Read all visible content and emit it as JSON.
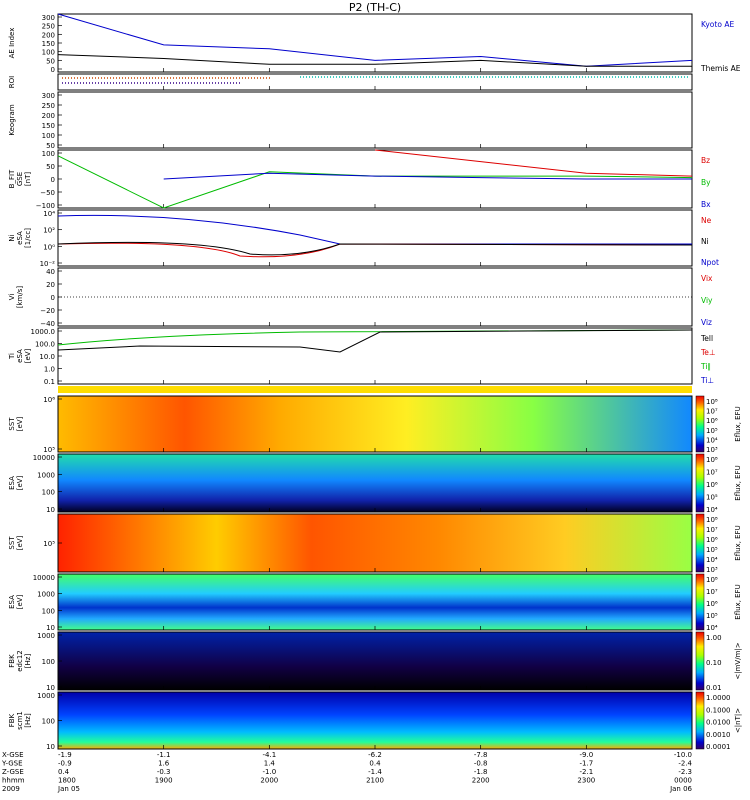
{
  "title": "P2 (TH-C)",
  "panels": [
    {
      "id": "ae",
      "ylabel": "AE Index",
      "ticks": [
        "300",
        "250",
        "200",
        "150",
        "100",
        "50",
        "0"
      ],
      "legend": [
        {
          "text": "Kyoto AE",
          "color": "#0000cc"
        },
        {
          "text": "Themis AE",
          "color": "#000000"
        }
      ]
    },
    {
      "id": "roi",
      "ylabel": "ROI",
      "ticks": [],
      "legend": []
    },
    {
      "id": "keogram",
      "ylabel": "Keogram",
      "ticks": [
        "300",
        "250",
        "200",
        "150",
        "100",
        "50"
      ],
      "legend": []
    },
    {
      "id": "bfit",
      "ylabel": [
        "B_FIT",
        "GSE",
        "[nT]"
      ],
      "ticks": [
        "100",
        "50",
        "0",
        "−50",
        "−100"
      ],
      "legend": [
        {
          "text": "Bz",
          "color": "#dd0000"
        },
        {
          "text": "By",
          "color": "#00bb00"
        },
        {
          "text": "Bx",
          "color": "#0000cc"
        }
      ]
    },
    {
      "id": "ni",
      "ylabel": [
        "Ni",
        "eSA",
        "[1/cc]"
      ],
      "ticks": [
        "10⁴",
        "10²",
        "10⁰",
        "10⁻²"
      ],
      "legend": [
        {
          "text": "Ne",
          "color": "#dd0000"
        },
        {
          "text": "Ni",
          "color": "#000000"
        },
        {
          "text": "Npot",
          "color": "#0000cc"
        }
      ]
    },
    {
      "id": "vi",
      "ylabel": [
        "Vi",
        "[km/s]"
      ],
      "ticks": [
        "40",
        "20",
        "0",
        "−20",
        "−40"
      ],
      "legend": [
        {
          "text": "Vix",
          "color": "#dd0000"
        },
        {
          "text": "Viy",
          "color": "#00bb00"
        },
        {
          "text": "Viz",
          "color": "#0000cc"
        }
      ]
    },
    {
      "id": "ti",
      "ylabel": [
        "Ti",
        "eSA",
        "[eV]"
      ],
      "ticks": [
        "1000.0",
        "100.0",
        "10.0",
        "1.0",
        "0.1"
      ],
      "legend": [
        {
          "text": "Tell",
          "color": "#000000"
        },
        {
          "text": "Te⊥",
          "color": "#dd0000"
        },
        {
          "text": "Ti∥",
          "color": "#00bb00"
        },
        {
          "text": "Ti⊥",
          "color": "#0000cc"
        }
      ]
    },
    {
      "id": "sst_e",
      "ylabel": [
        "SST",
        "[eV]"
      ],
      "ticks": [
        "10⁶",
        "10⁵"
      ],
      "legend": []
    },
    {
      "id": "esa_e",
      "ylabel": [
        "ESA",
        "[eV]"
      ],
      "ticks": [
        "10000",
        "1000",
        "100",
        "10"
      ],
      "legend": []
    },
    {
      "id": "sst_i",
      "ylabel": [
        "SST",
        "[eV]"
      ],
      "ticks": [
        "10⁵"
      ],
      "legend": []
    },
    {
      "id": "esa_i",
      "ylabel": [
        "ESA",
        "[eV]"
      ],
      "ticks": [
        "10000",
        "1000",
        "100",
        "10"
      ],
      "legend": []
    },
    {
      "id": "fbk1",
      "ylabel": [
        "FBK",
        "edc12",
        "[Hz]"
      ],
      "ticks": [
        "1000",
        "100",
        "10"
      ],
      "legend": []
    },
    {
      "id": "fbk2",
      "ylabel": [
        "FBK",
        "scm1",
        "[Hz]"
      ],
      "ticks": [
        "1000",
        "100",
        "10"
      ],
      "legend": []
    }
  ],
  "colorbars": [
    {
      "labels": [
        "10⁸",
        "10⁷",
        "10⁶",
        "10⁵",
        "10⁴",
        "10³"
      ],
      "title": "Eflux, EFU"
    },
    {
      "labels": [
        "10⁸",
        "10⁷",
        "10⁶",
        "10⁵",
        "10⁴"
      ],
      "title": "Eflux, EFU"
    },
    {
      "labels": [
        "10⁸",
        "10⁷",
        "10⁶",
        "10⁵",
        "10⁴",
        "10³"
      ],
      "title": "Eflux, EFU"
    },
    {
      "labels": [
        "10⁸",
        "10⁷",
        "10⁶",
        "10⁵",
        "10⁴"
      ],
      "title": "Eflux, EFU"
    },
    {
      "labels": [
        "1.00",
        "0.10",
        "0.01"
      ],
      "title": "<|mV/m|>"
    },
    {
      "labels": [
        "1.0000",
        "0.1000",
        "0.0100",
        "0.0010",
        "0.0001"
      ],
      "title": "<|nT|>"
    }
  ],
  "footer": {
    "row_labels": [
      "X-GSE",
      "Y-GSE",
      "Z-GSE",
      "hhmm",
      "2009"
    ],
    "columns": [
      [
        "-1.9",
        "-0.9",
        "0.4",
        "1800",
        "Jan 05"
      ],
      [
        "-1.1",
        "1.6",
        "-0.3",
        "1900",
        ""
      ],
      [
        "-4.1",
        "1.4",
        "-1.0",
        "2000",
        ""
      ],
      [
        "-6.2",
        "0.4",
        "-1.4",
        "2100",
        ""
      ],
      [
        "-7.8",
        "-0.8",
        "-1.8",
        "2200",
        ""
      ],
      [
        "-9.0",
        "-1.7",
        "-2.1",
        "2300",
        ""
      ],
      [
        "-10.0",
        "-2.4",
        "-2.3",
        "0000",
        "Jan 06"
      ]
    ]
  },
  "chart_data": {
    "type": "line",
    "title": "P2 (TH-C)",
    "x": [
      "1800",
      "1900",
      "2000",
      "2100",
      "2200",
      "2300",
      "0000"
    ],
    "series": [
      {
        "name": "Kyoto AE",
        "values": [
          300,
          140,
          120,
          60,
          80,
          30,
          60
        ]
      },
      {
        "name": "Themis AE",
        "values": [
          90,
          70,
          40,
          40,
          60,
          30,
          30
        ]
      },
      {
        "name": "Bz",
        "values": [
          null,
          null,
          null,
          100,
          60,
          20,
          10
        ]
      },
      {
        "name": "By",
        "values": [
          80,
          -100,
          25,
          10,
          10,
          10,
          5
        ]
      },
      {
        "name": "Bx",
        "values": [
          null,
          0,
          20,
          10,
          5,
          0,
          0
        ]
      }
    ],
    "ylim_ae": [
      0,
      300
    ],
    "ylim_b": [
      -100,
      100
    ]
  }
}
